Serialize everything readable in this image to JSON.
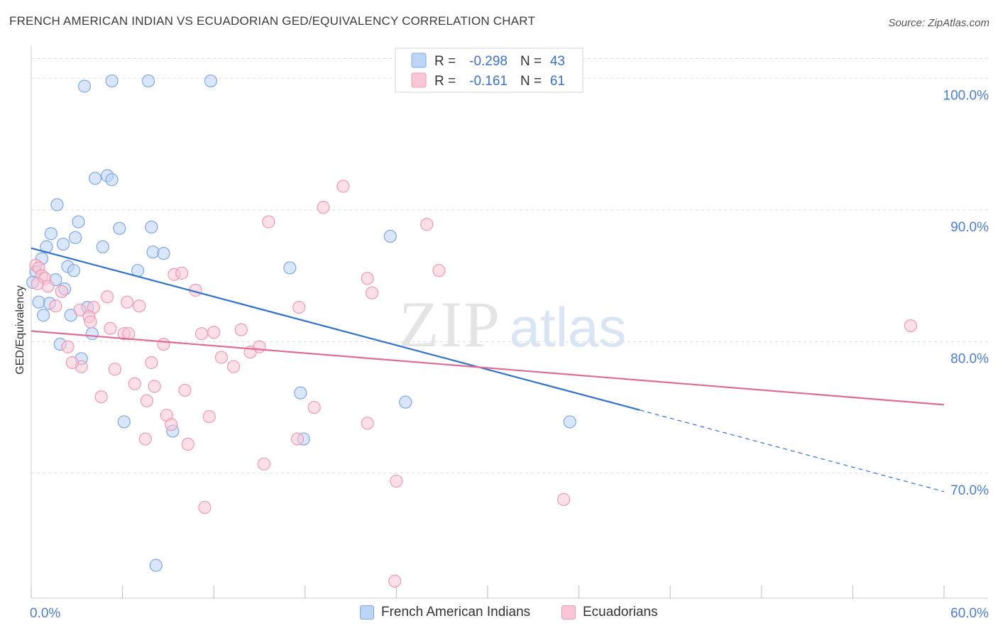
{
  "header": {
    "title": "FRENCH AMERICAN INDIAN VS ECUADORIAN GED/EQUIVALENCY CORRELATION CHART",
    "source": "Source: ZipAtlas.com"
  },
  "watermark": {
    "zip": "ZIP",
    "atlas": "atlas"
  },
  "stats": [
    {
      "r_label": "R =",
      "r_value": "-0.298",
      "n_label": "N =",
      "n_value": "43"
    },
    {
      "r_label": "R =",
      "r_value": "-0.161",
      "n_label": "N =",
      "n_value": "61"
    }
  ],
  "legend": [
    "French American Indians",
    "Ecuadorians"
  ],
  "colors": {
    "blue_fill": "#bcd4f5",
    "blue_stroke": "#7ea7e6",
    "blue_line": "#2f72cf",
    "pink_fill": "#f8c6d5",
    "pink_stroke": "#ee98b3",
    "pink_line": "#e06b93",
    "axis_label": "#4a7dd4",
    "grid": "#dddddd"
  },
  "chart_data": {
    "type": "scatter",
    "xlabel": "",
    "ylabel": "GED/Equivalency",
    "xlim": [
      0,
      60
    ],
    "ylim": [
      60.5,
      102.5
    ],
    "x_tick_labels": [
      {
        "value": 0,
        "label": "0.0%"
      },
      {
        "value": 60,
        "label": "60.0%"
      }
    ],
    "y_tick_labels": [
      {
        "value": 70,
        "label": "70.0%"
      },
      {
        "value": 80,
        "label": "80.0%"
      },
      {
        "value": 90,
        "label": "90.0%"
      },
      {
        "value": 100,
        "label": "100.0%"
      }
    ],
    "legend_placement": "bottom",
    "grid": true,
    "series": [
      {
        "name": "French American Indians",
        "points": [
          [
            3.5,
            99.4
          ],
          [
            5.3,
            99.8
          ],
          [
            7.7,
            99.8
          ],
          [
            11.8,
            99.8
          ],
          [
            4.2,
            92.4
          ],
          [
            5.0,
            92.6
          ],
          [
            5.3,
            92.3
          ],
          [
            1.7,
            90.4
          ],
          [
            1.3,
            88.2
          ],
          [
            3.1,
            89.1
          ],
          [
            5.8,
            88.6
          ],
          [
            7.9,
            88.7
          ],
          [
            2.9,
            87.9
          ],
          [
            2.1,
            87.4
          ],
          [
            4.7,
            87.2
          ],
          [
            1.0,
            87.2
          ],
          [
            8.0,
            86.8
          ],
          [
            8.7,
            86.7
          ],
          [
            0.7,
            86.3
          ],
          [
            2.4,
            85.7
          ],
          [
            2.8,
            85.4
          ],
          [
            7.0,
            85.4
          ],
          [
            17.0,
            85.6
          ],
          [
            23.6,
            88.0
          ],
          [
            0.3,
            85.3
          ],
          [
            1.6,
            84.7
          ],
          [
            2.2,
            84.0
          ],
          [
            0.5,
            83.0
          ],
          [
            1.2,
            82.9
          ],
          [
            3.7,
            82.6
          ],
          [
            0.8,
            82.0
          ],
          [
            2.6,
            82.0
          ],
          [
            4.0,
            80.6
          ],
          [
            1.9,
            79.8
          ],
          [
            3.3,
            78.7
          ],
          [
            6.1,
            73.9
          ],
          [
            9.3,
            73.2
          ],
          [
            17.7,
            76.1
          ],
          [
            17.9,
            72.6
          ],
          [
            24.6,
            75.4
          ],
          [
            35.4,
            73.9
          ],
          [
            8.2,
            63.0
          ],
          [
            0.1,
            84.5
          ]
        ]
      },
      {
        "name": "Ecuadorians",
        "points": [
          [
            0.3,
            85.8
          ],
          [
            0.5,
            85.6
          ],
          [
            0.7,
            85.0
          ],
          [
            0.9,
            84.8
          ],
          [
            1.1,
            84.2
          ],
          [
            2.0,
            83.8
          ],
          [
            0.4,
            84.4
          ],
          [
            1.6,
            82.7
          ],
          [
            3.2,
            82.4
          ],
          [
            4.1,
            82.6
          ],
          [
            5.0,
            83.4
          ],
          [
            3.8,
            81.9
          ],
          [
            5.2,
            81.0
          ],
          [
            6.1,
            80.6
          ],
          [
            7.1,
            82.7
          ],
          [
            7.9,
            78.4
          ],
          [
            6.3,
            83.0
          ],
          [
            3.9,
            81.5
          ],
          [
            2.4,
            79.6
          ],
          [
            3.3,
            78.1
          ],
          [
            2.7,
            78.4
          ],
          [
            5.5,
            77.9
          ],
          [
            6.8,
            76.8
          ],
          [
            8.1,
            76.6
          ],
          [
            8.7,
            79.8
          ],
          [
            4.6,
            75.8
          ],
          [
            7.6,
            75.5
          ],
          [
            8.9,
            74.4
          ],
          [
            9.2,
            73.7
          ],
          [
            7.5,
            72.6
          ],
          [
            10.1,
            76.3
          ],
          [
            10.3,
            72.2
          ],
          [
            11.7,
            74.3
          ],
          [
            9.4,
            85.1
          ],
          [
            9.9,
            85.2
          ],
          [
            10.8,
            83.9
          ],
          [
            12.0,
            80.7
          ],
          [
            11.2,
            80.6
          ],
          [
            12.5,
            78.8
          ],
          [
            13.3,
            78.1
          ],
          [
            13.8,
            80.9
          ],
          [
            14.4,
            79.2
          ],
          [
            15.0,
            79.6
          ],
          [
            15.3,
            70.7
          ],
          [
            15.6,
            89.1
          ],
          [
            17.5,
            72.6
          ],
          [
            17.6,
            82.6
          ],
          [
            18.6,
            75.0
          ],
          [
            19.2,
            90.2
          ],
          [
            20.5,
            91.8
          ],
          [
            22.1,
            84.8
          ],
          [
            22.4,
            83.7
          ],
          [
            22.1,
            73.8
          ],
          [
            24.0,
            69.4
          ],
          [
            23.9,
            61.8
          ],
          [
            26.0,
            88.9
          ],
          [
            26.8,
            85.4
          ],
          [
            11.4,
            67.4
          ],
          [
            35.0,
            68.0
          ],
          [
            57.8,
            81.2
          ],
          [
            6.4,
            80.6
          ]
        ]
      }
    ],
    "trendlines": [
      {
        "series": "French American Indians",
        "from": [
          0,
          87.1
        ],
        "to": [
          40,
          74.8
        ],
        "dashed_to": [
          60,
          68.6
        ]
      },
      {
        "series": "Ecuadorians",
        "from": [
          0,
          80.8
        ],
        "to": [
          60,
          75.2
        ]
      }
    ]
  }
}
